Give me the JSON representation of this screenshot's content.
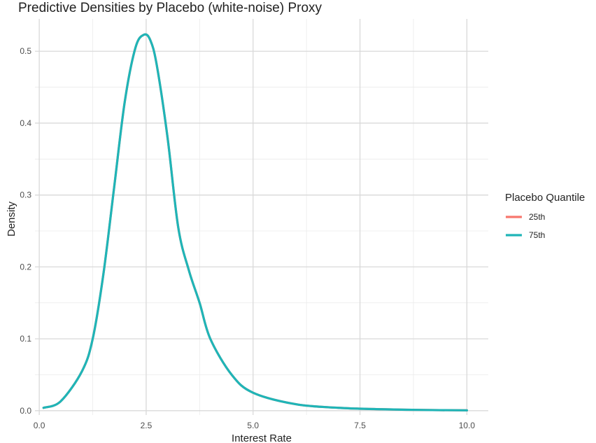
{
  "chart_data": {
    "type": "line",
    "title": "Predictive Densities by Placebo (white-noise) Proxy",
    "xlabel": "Interest Rate",
    "ylabel": "Density",
    "xlim": [
      -0.1,
      10.5
    ],
    "ylim": [
      -0.006,
      0.545
    ],
    "x_ticks": [
      0.0,
      2.5,
      5.0,
      7.5,
      10.0
    ],
    "x_tick_labels": [
      "0.0",
      "2.5",
      "5.0",
      "7.5",
      "10.0"
    ],
    "y_ticks": [
      0.0,
      0.1,
      0.2,
      0.3,
      0.4,
      0.5
    ],
    "y_tick_labels": [
      "0.0",
      "0.1",
      "0.2",
      "0.3",
      "0.4",
      "0.5"
    ],
    "grid": true,
    "legend": {
      "title": "Placebo Quantile",
      "position": "right"
    },
    "series": [
      {
        "name": "25th",
        "color": "#F8766D",
        "x": [
          0.1,
          0.5,
          1.0,
          1.25,
          1.5,
          1.75,
          2.0,
          2.25,
          2.45,
          2.6,
          2.75,
          3.0,
          3.25,
          3.5,
          3.75,
          4.0,
          4.5,
          5.0,
          6.0,
          7.0,
          8.0,
          9.0,
          10.0
        ],
        "y": [
          0.004,
          0.013,
          0.055,
          0.1,
          0.19,
          0.31,
          0.43,
          0.505,
          0.523,
          0.515,
          0.48,
          0.38,
          0.255,
          0.195,
          0.15,
          0.1,
          0.05,
          0.025,
          0.009,
          0.004,
          0.002,
          0.001,
          0.0005
        ]
      },
      {
        "name": "75th",
        "color": "#1FB5B7",
        "x": [
          0.1,
          0.5,
          1.0,
          1.25,
          1.5,
          1.75,
          2.0,
          2.25,
          2.45,
          2.6,
          2.75,
          3.0,
          3.25,
          3.5,
          3.75,
          4.0,
          4.5,
          5.0,
          6.0,
          7.0,
          8.0,
          9.0,
          10.0
        ],
        "y": [
          0.004,
          0.013,
          0.055,
          0.1,
          0.19,
          0.31,
          0.43,
          0.505,
          0.523,
          0.515,
          0.48,
          0.38,
          0.255,
          0.195,
          0.15,
          0.1,
          0.05,
          0.025,
          0.009,
          0.004,
          0.002,
          0.001,
          0.0005
        ]
      }
    ]
  }
}
